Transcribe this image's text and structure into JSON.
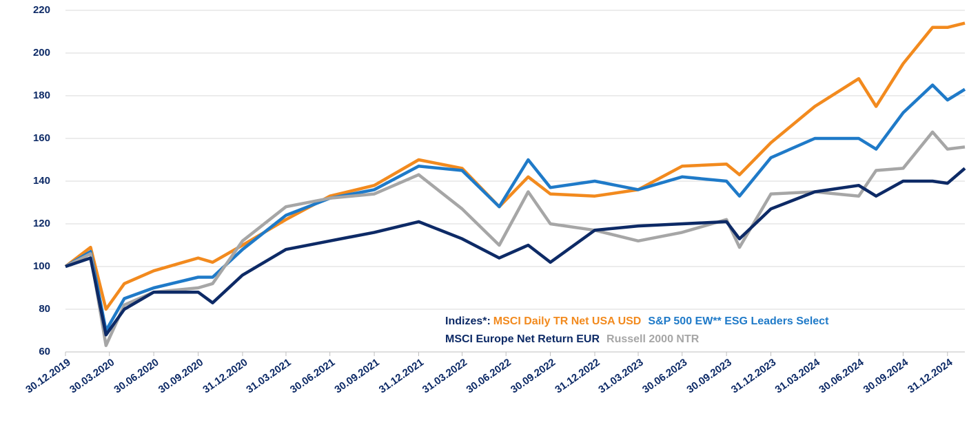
{
  "chart_data": {
    "type": "line",
    "legend_title": "Indizes*:",
    "x": [
      "30.12.2019",
      "20.02.2020",
      "23.03.2020",
      "30.04.2020",
      "30.06.2020",
      "30.09.2020",
      "30.10.2020",
      "31.12.2020",
      "31.03.2021",
      "30.06.2021",
      "30.09.2021",
      "31.12.2021",
      "31.03.2022",
      "16.06.2022",
      "15.08.2022",
      "30.09.2022",
      "31.12.2022",
      "31.03.2023",
      "30.06.2023",
      "30.09.2023",
      "27.10.2023",
      "31.12.2023",
      "31.03.2024",
      "30.06.2024",
      "05.08.2024",
      "30.09.2024",
      "30.11.2024",
      "31.12.2024",
      "05.02.2025"
    ],
    "series": [
      {
        "name": "MSCI Daily TR Net USA USD",
        "color": "#f28a1e",
        "values": [
          100,
          109,
          80,
          92,
          98,
          104,
          102,
          110,
          122,
          133,
          138,
          150,
          146,
          128,
          142,
          134,
          133,
          136,
          147,
          148,
          143,
          158,
          175,
          188,
          175,
          195,
          212,
          212,
          214
        ]
      },
      {
        "name": "S&P 500 EW** ESG Leaders Select",
        "color": "#1f7ac8",
        "values": [
          100,
          107,
          70,
          85,
          90,
          95,
          95,
          108,
          124,
          132,
          136,
          147,
          145,
          128,
          150,
          137,
          140,
          136,
          142,
          140,
          133,
          151,
          160,
          160,
          155,
          172,
          185,
          178,
          183
        ]
      },
      {
        "name": "MSCI Europe Net Return EUR",
        "color": "#0d2a66",
        "values": [
          100,
          104,
          68,
          80,
          88,
          88,
          83,
          96,
          108,
          112,
          116,
          121,
          113,
          104,
          110,
          102,
          117,
          119,
          120,
          121,
          113,
          127,
          135,
          138,
          133,
          140,
          140,
          139,
          146
        ]
      },
      {
        "name": "Russell 2000 NTR",
        "color": "#a6a6a6",
        "values": [
          100,
          106,
          63,
          82,
          88,
          90,
          92,
          112,
          128,
          132,
          134,
          143,
          127,
          110,
          135,
          120,
          117,
          112,
          116,
          122,
          109,
          134,
          135,
          133,
          145,
          146,
          163,
          155,
          156
        ]
      }
    ],
    "xlim": [
      "30.12.2019",
      "05.02.2025"
    ],
    "xticks": [
      "30.12.2019",
      "30.03.2020",
      "30.06.2020",
      "30.09.2020",
      "31.12.2020",
      "31.03.2021",
      "30.06.2021",
      "30.09.2021",
      "31.12.2021",
      "31.03.2022",
      "30.06.2022",
      "30.09.2022",
      "31.12.2022",
      "31.03.2023",
      "30.06.2023",
      "30.09.2023",
      "31.12.2023",
      "31.03.2024",
      "30.06.2024",
      "30.09.2024",
      "31.12.2024"
    ],
    "ylim": [
      60,
      220
    ],
    "yticks": [
      60,
      80,
      100,
      120,
      140,
      160,
      180,
      200,
      220
    ],
    "grid": true
  }
}
